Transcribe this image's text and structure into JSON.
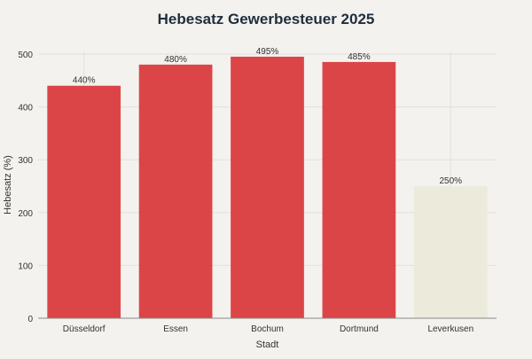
{
  "chart_data": {
    "type": "bar",
    "title": "Hebesatz Gewerbesteuer 2025",
    "xlabel": "Stadt",
    "ylabel": "Hebesatz (%)",
    "categories": [
      "Düsseldorf",
      "Essen",
      "Bochum",
      "Dortmund",
      "Leverkusen"
    ],
    "values": [
      440,
      480,
      495,
      485,
      250
    ],
    "data_labels": [
      "440%",
      "480%",
      "495%",
      "485%",
      "250%"
    ],
    "bar_colors": [
      "#dc4548",
      "#dc4548",
      "#dc4548",
      "#dc4548",
      "#ecebdb"
    ],
    "yticks": [
      0,
      100,
      200,
      300,
      400,
      500
    ],
    "ylim": [
      0,
      505
    ],
    "grid": true,
    "colors": {
      "background": "#f3f2ee",
      "gridline": "#e1e0dc",
      "axis": "#888888",
      "text": "#333333",
      "title": "#1f2d3d"
    }
  }
}
